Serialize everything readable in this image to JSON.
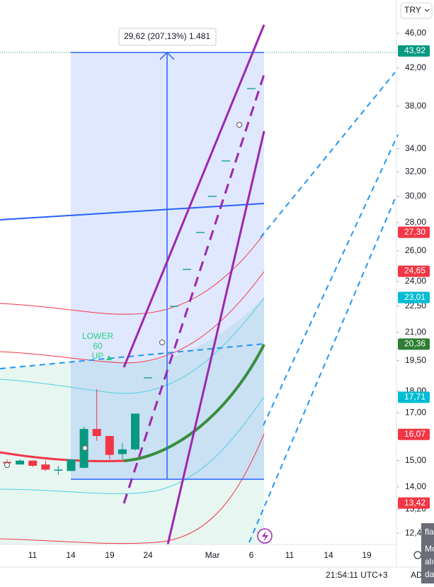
{
  "chart_data": {
    "type": "candlestick",
    "log_scale": true,
    "ylim": [
      12.04,
      50.2
    ],
    "yticks": [
      {
        "value": 46,
        "label": "46,00"
      },
      {
        "value": 42,
        "label": "42,00"
      },
      {
        "value": 38,
        "label": "38,00"
      },
      {
        "value": 34,
        "label": "34,00"
      },
      {
        "value": 32,
        "label": "32,00"
      },
      {
        "value": 30,
        "label": "30,00"
      },
      {
        "value": 28,
        "label": "28,00"
      },
      {
        "value": 26,
        "label": "26,00"
      },
      {
        "value": 24,
        "label": "24,00"
      },
      {
        "value": 22.5,
        "label": "22,50"
      },
      {
        "value": 21,
        "label": "21,00"
      },
      {
        "value": 19.5,
        "label": "19,50"
      },
      {
        "value": 18,
        "label": "18,00"
      },
      {
        "value": 17,
        "label": "17,00"
      },
      {
        "value": 15,
        "label": "15,00"
      },
      {
        "value": 14,
        "label": "14,00"
      },
      {
        "value": 13.2,
        "label": "13,20"
      },
      {
        "value": 12.4,
        "label": "12,4"
      }
    ],
    "x_labels": [
      "11",
      "14",
      "19",
      "24",
      "Mar",
      "6",
      "11",
      "14",
      "19"
    ],
    "open": [
      14.95,
      14.85,
      15.0,
      14.85,
      14.65,
      14.6,
      14.72,
      16.3,
      16.0,
      15.26,
      15.45
    ],
    "high": [
      15.05,
      15.05,
      15.0,
      15.0,
      14.8,
      15.05,
      16.4,
      18.1,
      16.0,
      15.7,
      16.97
    ],
    "low": [
      14.8,
      14.85,
      14.75,
      14.6,
      14.45,
      14.6,
      14.7,
      15.8,
      15.05,
      15.05,
      15.4
    ],
    "close": [
      14.9,
      15.0,
      14.8,
      14.65,
      14.65,
      15.05,
      16.3,
      16.0,
      15.23,
      15.45,
      16.97
    ],
    "up_color": "#089981",
    "down_color": "#f23645",
    "price_labels": [
      {
        "value": 43.92,
        "label": "43,92",
        "color": "#089981"
      },
      {
        "value": 27.3,
        "label": "27,30",
        "color": "#f23645"
      },
      {
        "value": 24.65,
        "label": "24,65",
        "color": "#f23645"
      },
      {
        "value": 23.01,
        "label": "23,01",
        "color": "#00bcd4"
      },
      {
        "value": 20.36,
        "label": "20,36",
        "color": "#2e7d32"
      },
      {
        "value": 17.71,
        "label": "17,71",
        "color": "#00bcd4"
      },
      {
        "value": 16.07,
        "label": "16,07",
        "color": "#f23645"
      },
      {
        "value": 13.42,
        "label": "13,42",
        "color": "#f23645"
      }
    ],
    "measure_label": "29,62 (207,13%) 1.481",
    "signal": [
      "LOWER",
      "60",
      "UP"
    ]
  },
  "ui": {
    "currency": "TRY",
    "clock": "21:54:11 UTC+3",
    "adj": "AD",
    "popup": [
      "fla",
      "Mo",
      "alı",
      "da"
    ]
  }
}
